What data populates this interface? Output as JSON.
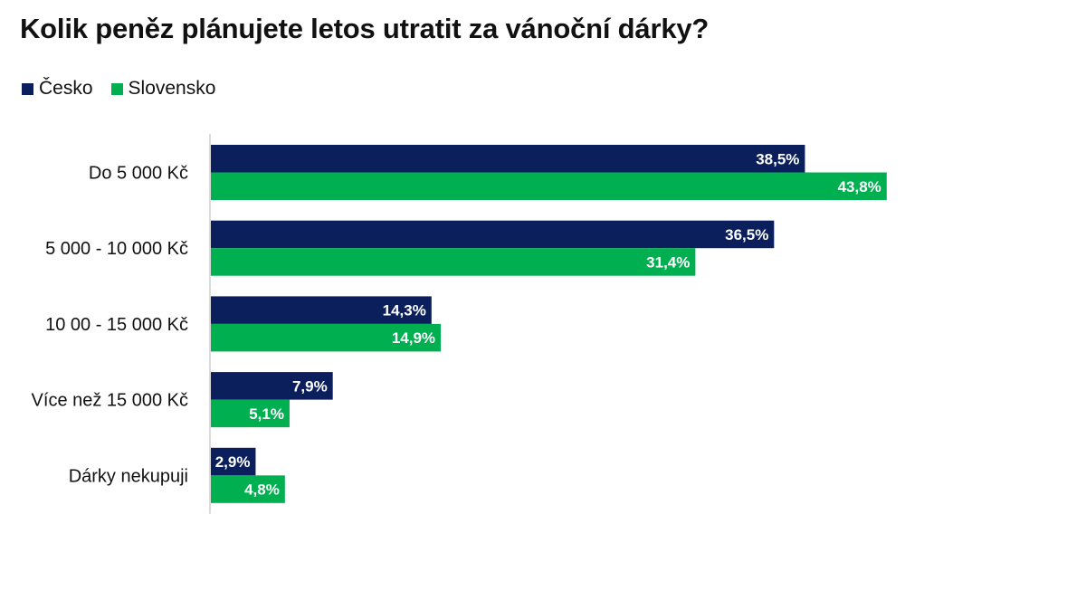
{
  "chart_data": {
    "type": "bar",
    "orientation": "horizontal",
    "title": "Kolik peněz plánujete letos utratit za vánoční dárky?",
    "categories": [
      "Do 5 000 Kč",
      "5 000 - 10 000 Kč",
      "10 00 - 15 000 Kč",
      "Více než 15 000 Kč",
      "Dárky nekupuji"
    ],
    "series": [
      {
        "name": "Česko",
        "color": "#0b1f5c",
        "values": [
          38.5,
          36.5,
          14.3,
          7.9,
          2.9
        ],
        "labels": [
          "38,5%",
          "36,5%",
          "14,3%",
          "7,9%",
          "2,9%"
        ]
      },
      {
        "name": "Slovensko",
        "color": "#00b050",
        "values": [
          43.8,
          31.4,
          14.9,
          5.1,
          4.8
        ],
        "labels": [
          "43,8%",
          "31,4%",
          "14,9%",
          "5,1%",
          "4,8%"
        ]
      }
    ],
    "xlim": [
      0,
      50
    ],
    "grid": false,
    "legend_position": "top-left",
    "unit": "%"
  }
}
